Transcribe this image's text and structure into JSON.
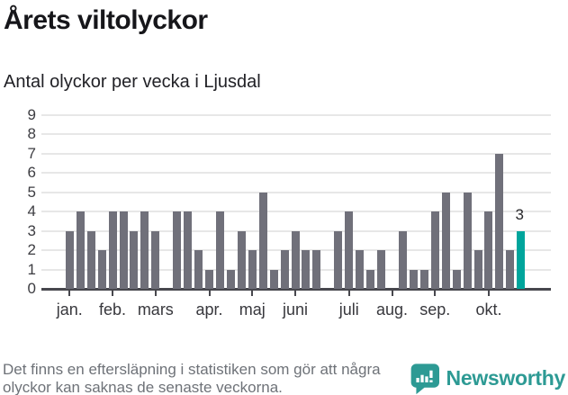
{
  "header": {
    "title": "Årets viltolyckor",
    "subtitle": "Antal olyckor per vecka i Ljusdal"
  },
  "chart_data": {
    "type": "bar",
    "title": "Årets viltolyckor",
    "subtitle": "Antal olyckor per vecka i Ljusdal",
    "x_unit": "vecka (week of year)",
    "values": [
      3,
      4,
      3,
      2,
      4,
      4,
      3,
      4,
      3,
      0,
      4,
      4,
      2,
      1,
      4,
      1,
      3,
      2,
      5,
      1,
      2,
      3,
      2,
      2,
      0,
      3,
      4,
      2,
      1,
      2,
      0,
      3,
      1,
      1,
      4,
      5,
      1,
      5,
      2,
      4,
      7,
      2,
      3
    ],
    "month_ticks": [
      {
        "label": "jan.",
        "slot": 0
      },
      {
        "label": "feb.",
        "slot": 4
      },
      {
        "label": "mars",
        "slot": 8
      },
      {
        "label": "apr.",
        "slot": 13
      },
      {
        "label": "maj",
        "slot": 17
      },
      {
        "label": "juni",
        "slot": 21
      },
      {
        "label": "juli",
        "slot": 26
      },
      {
        "label": "aug.",
        "slot": 30
      },
      {
        "label": "sep.",
        "slot": 34
      },
      {
        "label": "okt.",
        "slot": 39
      }
    ],
    "yticks": [
      0,
      1,
      2,
      3,
      4,
      5,
      6,
      7,
      8,
      9
    ],
    "ylim": [
      0,
      9
    ],
    "grid": true,
    "last_value_label": "3",
    "highlight_last": true,
    "bar_color": "#70707a",
    "highlight_color": "#00a59c"
  },
  "footer": {
    "note": "Det finns en eftersläpning i statistiken som gör att några olyckor kan saknas de senaste veckorna.",
    "brand": "Newsworthy",
    "brand_color": "#2d9a94"
  }
}
